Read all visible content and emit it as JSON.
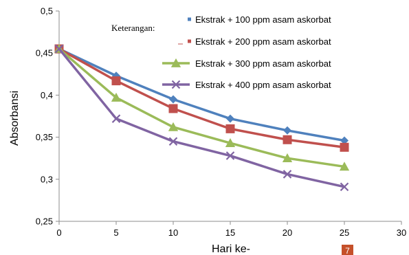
{
  "chart_data": {
    "type": "line",
    "x": [
      0,
      5,
      10,
      15,
      20,
      25
    ],
    "xlim": [
      0,
      30
    ],
    "x_ticks": [
      0,
      5,
      10,
      15,
      20,
      25,
      30
    ],
    "ylim": [
      0.25,
      0.5
    ],
    "y_ticks": [
      "0,25",
      "0,3",
      "0,35",
      "0,4",
      "0,45",
      "0,5"
    ],
    "xlabel": "Hari ke-",
    "ylabel": "Absorbansi",
    "legend_title": "Keterangan:",
    "legend_position": "top-right",
    "grid": false,
    "series": [
      {
        "name": "Ekstrak + 100 ppm asam askorbat",
        "values": [
          0.455,
          0.423,
          0.395,
          0.372,
          0.358,
          0.346
        ],
        "color": "#4F81BD",
        "marker": "diamond"
      },
      {
        "name": "Ekstrak + 200 ppm asam askorbat",
        "values": [
          0.455,
          0.417,
          0.384,
          0.36,
          0.347,
          0.338
        ],
        "color": "#C0504D",
        "marker": "square"
      },
      {
        "name": "Ekstrak + 300 ppm asam askorbat",
        "values": [
          0.455,
          0.397,
          0.362,
          0.343,
          0.325,
          0.315
        ],
        "color": "#9BBB59",
        "marker": "triangle"
      },
      {
        "name": "Ekstrak + 400 ppm asam askorbat",
        "values": [
          0.455,
          0.372,
          0.345,
          0.328,
          0.306,
          0.291
        ],
        "color": "#8064A2",
        "marker": "x"
      }
    ]
  },
  "page_badge": {
    "label": "7",
    "color": "#C5502A"
  }
}
